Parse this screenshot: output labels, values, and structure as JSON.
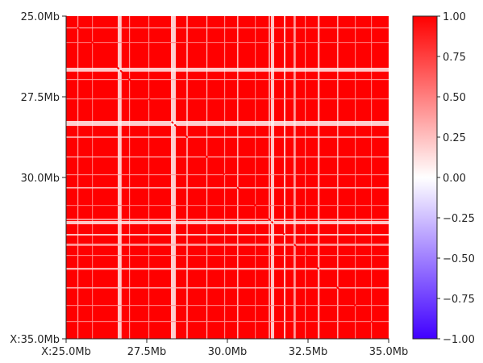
{
  "chart_data": {
    "type": "heatmap",
    "title": "",
    "xlabel": "",
    "ylabel": "",
    "x_range_mb": [
      25.0,
      35.0
    ],
    "y_range_mb": [
      25.0,
      35.0
    ],
    "y_axis_inverted": true,
    "x_ticks": [
      {
        "value": 25.0,
        "label": "X:25.0Mb"
      },
      {
        "value": 27.5,
        "label": "27.5Mb"
      },
      {
        "value": 30.0,
        "label": "30.0Mb"
      },
      {
        "value": 32.5,
        "label": "32.5Mb"
      },
      {
        "value": 35.0,
        "label": "35.0Mb"
      }
    ],
    "y_ticks": [
      {
        "value": 25.0,
        "label": "25.0Mb"
      },
      {
        "value": 27.5,
        "label": "27.5Mb"
      },
      {
        "value": 30.0,
        "label": "30.0Mb"
      },
      {
        "value": 35.0,
        "label": "X:35.0Mb"
      }
    ],
    "matrix_summary": {
      "dominant_value": 1.0,
      "diagonal_value": 1.0,
      "low_correlation_bands_mb": [
        {
          "start": 28.25,
          "end": 28.4,
          "value": 0.05
        },
        {
          "start": 26.6,
          "end": 26.72,
          "value": 0.08
        },
        {
          "start": 31.35,
          "end": 31.45,
          "value": 0.1
        },
        {
          "start": 31.75,
          "end": 31.8,
          "value": 0.12
        },
        {
          "start": 29.35,
          "end": 29.38,
          "value": 0.15
        },
        {
          "start": 32.8,
          "end": 32.86,
          "value": 0.2
        },
        {
          "start": 31.28,
          "end": 31.32,
          "value": 0.2
        },
        {
          "start": 28.73,
          "end": 28.77,
          "value": 0.15
        },
        {
          "start": 25.35,
          "end": 25.38,
          "value": 0.25
        },
        {
          "start": 30.3,
          "end": 30.34,
          "value": 0.2
        },
        {
          "start": 32.05,
          "end": 32.12,
          "value": 0.3
        },
        {
          "start": 33.4,
          "end": 33.44,
          "value": 0.25
        },
        {
          "start": 26.95,
          "end": 26.98,
          "value": 0.35
        },
        {
          "start": 29.9,
          "end": 29.93,
          "value": 0.4
        },
        {
          "start": 33.95,
          "end": 33.98,
          "value": 0.45
        },
        {
          "start": 27.55,
          "end": 27.58,
          "value": 0.4
        },
        {
          "start": 34.45,
          "end": 34.48,
          "value": 0.45
        },
        {
          "start": 30.85,
          "end": 30.88,
          "value": 0.5
        },
        {
          "start": 32.4,
          "end": 32.43,
          "value": 0.4
        },
        {
          "start": 25.8,
          "end": 25.83,
          "value": 0.5
        }
      ]
    },
    "colorbar": {
      "range": [
        -1.0,
        1.0
      ],
      "colormap": "bwr",
      "ticks": [
        {
          "value": 1.0,
          "label": "1.00"
        },
        {
          "value": 0.75,
          "label": "0.75"
        },
        {
          "value": 0.5,
          "label": "0.50"
        },
        {
          "value": 0.25,
          "label": "0.25"
        },
        {
          "value": 0.0,
          "label": "0.00"
        },
        {
          "value": -0.25,
          "label": "−0.25"
        },
        {
          "value": -0.5,
          "label": "−0.50"
        },
        {
          "value": -0.75,
          "label": "−0.75"
        },
        {
          "value": -1.0,
          "label": "−1.00"
        }
      ],
      "colors": {
        "low": "#4000ff",
        "mid": "#ffffff",
        "high": "#ff0000"
      }
    }
  }
}
